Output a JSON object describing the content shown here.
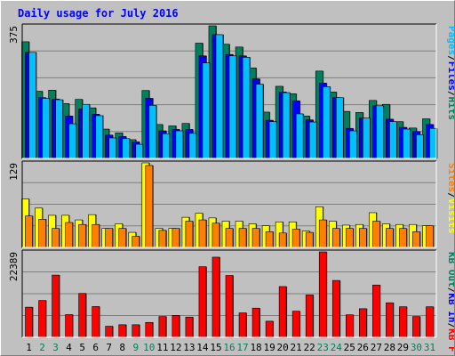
{
  "chart_data": {
    "type": "bar",
    "title": "Daily usage for July 2016",
    "categories": [
      "1",
      "2",
      "3",
      "4",
      "5",
      "6",
      "7",
      "8",
      "9",
      "10",
      "11",
      "12",
      "13",
      "14",
      "15",
      "16",
      "17",
      "18",
      "19",
      "20",
      "21",
      "22",
      "23",
      "24",
      "25",
      "26",
      "27",
      "28",
      "29",
      "30",
      "31"
    ],
    "weekend_days": [
      "2",
      "3",
      "9",
      "10",
      "16",
      "17",
      "23",
      "24",
      "30",
      "31"
    ],
    "colors": {
      "hits": "#00805c",
      "files": "#0000ff",
      "pages": "#00c0ff",
      "visits": "#ffff00",
      "sites": "#ff8000",
      "kb_f": "#ff0000",
      "kb_in": "#0000ff",
      "kb_out": "#00805c",
      "weekday_tick": "#000000",
      "weekend_tick": "#00805c"
    },
    "panels": [
      {
        "name": "hits-files-pages",
        "ymax_label": "375",
        "ymax": 375,
        "legend": [
          {
            "text": "Hits",
            "color": "#00805c"
          },
          {
            "text": "Files",
            "color": "#0000ff"
          },
          {
            "text": "Pages",
            "color": "#00c0ff"
          }
        ],
        "series": [
          {
            "name": "Hits",
            "color": "#00805c",
            "values": [
              330,
              190,
              193,
              155,
              167,
              143,
              83,
              72,
              53,
              192,
              96,
              92,
              99,
              326,
              375,
              323,
              315,
              256,
              131,
              204,
              183,
              120,
              247,
              188,
              133,
              130,
              164,
              153,
              104,
              86,
              112
            ]
          },
          {
            "name": "Files",
            "color": "#0000ff",
            "values": [
              300,
              172,
              168,
              120,
              140,
              125,
              66,
              62,
              47,
              170,
              78,
              82,
              82,
              290,
              350,
              294,
              290,
              225,
              108,
              188,
              163,
              109,
              213,
              172,
              85,
              114,
              149,
              111,
              88,
              76,
              96
            ]
          },
          {
            "name": "Pages",
            "color": "#00c0ff",
            "values": [
              300,
              170,
              166,
              98,
              153,
              121,
              58,
              56,
              40,
              150,
              70,
              78,
              71,
              270,
              350,
              290,
              286,
              210,
              104,
              186,
              126,
              103,
              203,
              172,
              78,
              114,
              149,
              104,
              83,
              67,
              85
            ]
          }
        ]
      },
      {
        "name": "visits-sites",
        "ymax_label": "129",
        "ymax": 129,
        "legend": [
          {
            "text": "Visits",
            "color": "#ffff00"
          },
          {
            "text": "Sites",
            "color": "#ff8000"
          }
        ],
        "series": [
          {
            "name": "Visits",
            "color": "#ffff00",
            "values": [
              74,
              60,
              49,
              49,
              42,
              50,
              29,
              36,
              23,
              129,
              29,
              29,
              46,
              52,
              45,
              40,
              40,
              36,
              33,
              39,
              39,
              25,
              62,
              40,
              34,
              35,
              53,
              36,
              35,
              35,
              33
            ]
          },
          {
            "name": "Sites",
            "color": "#ff8000",
            "values": [
              48,
              43,
              29,
              38,
              35,
              35,
              29,
              29,
              17,
              125,
              26,
              29,
              40,
              42,
              37,
              29,
              29,
              29,
              24,
              22,
              28,
              23,
              42,
              29,
              29,
              29,
              40,
              29,
              29,
              24,
              33
            ]
          }
        ]
      },
      {
        "name": "kb",
        "ymax_label": "22389",
        "ymax": 22389,
        "legend": [
          {
            "text": "KB F",
            "color": "#ff0000"
          },
          {
            "text": "KB In",
            "color": "#0000ff"
          },
          {
            "text": "KB Out",
            "color": "#00805c"
          }
        ],
        "series": [
          {
            "name": "KB F",
            "color": "#ff0000",
            "values": [
              7900,
              9650,
              16300,
              5950,
              11500,
              8060,
              2900,
              3300,
              3300,
              3900,
              5450,
              5760,
              5300,
              18500,
              21000,
              16200,
              6400,
              7650,
              4220,
              13300,
              6850,
              11100,
              22389,
              14900,
              5900,
              7500,
              13700,
              9050,
              8010,
              5450,
              8010
            ]
          }
        ]
      }
    ]
  }
}
